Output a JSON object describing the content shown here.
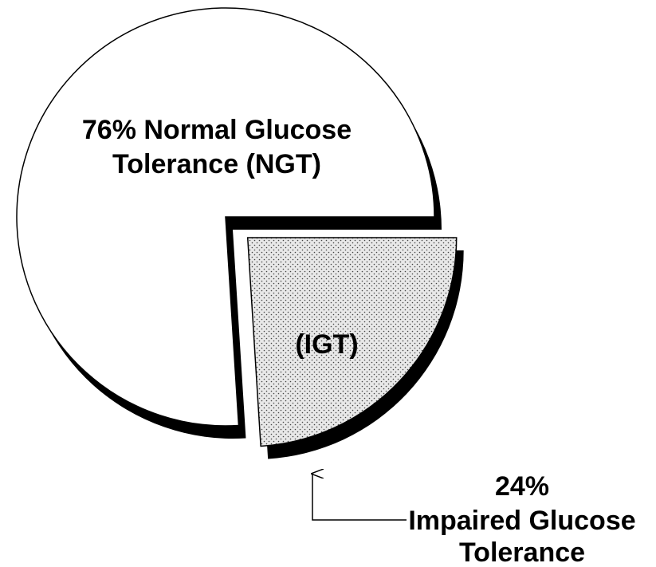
{
  "chart_data": {
    "type": "pie",
    "values": [
      76,
      24
    ],
    "value_labels": [
      [
        "76% Normal Glucose",
        "Tolerance (NGT)"
      ],
      [
        "24%",
        "Impaired Glucose",
        "Tolerance"
      ]
    ],
    "annotations": [
      {
        "text": "(IGT)"
      }
    ],
    "colors": [
      "#ffffff",
      "#e8e8e8"
    ]
  }
}
